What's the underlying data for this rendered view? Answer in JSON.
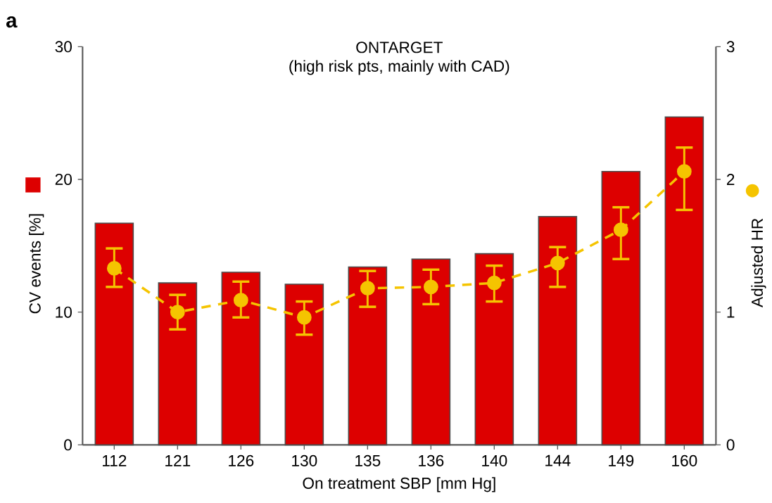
{
  "chart_data": {
    "type": "bar",
    "title": "ONTARGET",
    "subtitle": "(high risk pts, mainly with CAD)",
    "xlabel": "On treatment SBP [mm Hg]",
    "ylabel": "CV events [%]",
    "y2label": "Adjusted  HR",
    "annotations": [
      "a"
    ],
    "categories": [
      "112",
      "121",
      "126",
      "130",
      "135",
      "136",
      "140",
      "144",
      "149",
      "160"
    ],
    "ylim": [
      0,
      30
    ],
    "yticks": [
      0,
      10,
      20,
      30
    ],
    "y2lim": [
      0,
      3
    ],
    "y2ticks": [
      0,
      1,
      2,
      3
    ],
    "grid": false,
    "series": [
      {
        "color": "#dd0000",
        "values": [
          16.7,
          12.2,
          13.0,
          12.1,
          13.4,
          14.0,
          14.4,
          17.2,
          20.6,
          24.7
        ]
      },
      {
        "type": "line",
        "axis": "y2",
        "color": "#f5c400",
        "marker": "circle",
        "line_style": "dashed",
        "values": [
          1.33,
          1.0,
          1.09,
          0.96,
          1.18,
          1.19,
          1.22,
          1.37,
          1.62,
          2.06
        ],
        "errors": [
          [
            1.19,
            1.48
          ],
          [
            0.87,
            1.13
          ],
          [
            0.96,
            1.23
          ],
          [
            0.83,
            1.08
          ],
          [
            1.04,
            1.31
          ],
          [
            1.06,
            1.32
          ],
          [
            1.08,
            1.35
          ],
          [
            1.19,
            1.49
          ],
          [
            1.4,
            1.79
          ],
          [
            1.77,
            2.24
          ]
        ]
      }
    ]
  }
}
